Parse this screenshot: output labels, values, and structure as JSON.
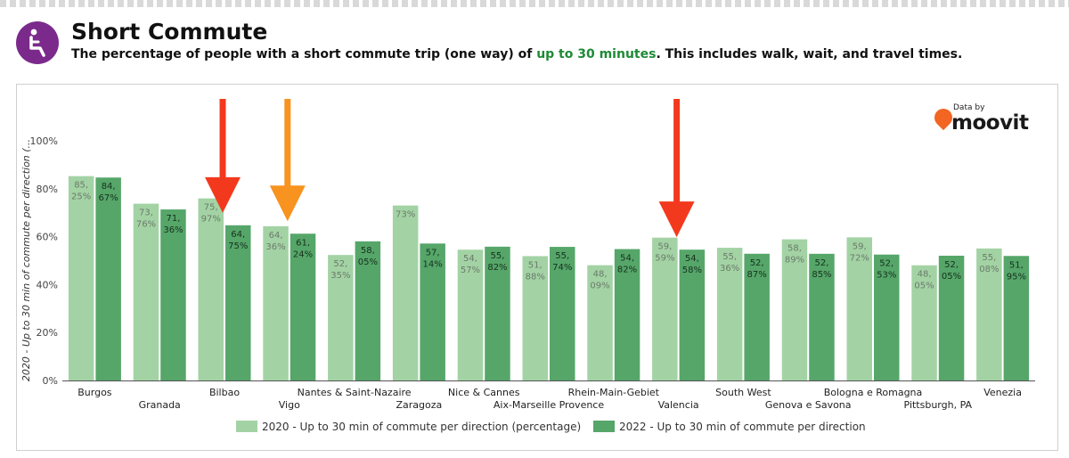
{
  "header": {
    "title": "Short Commute",
    "subtitle_part1": "The percentage of people with a short commute trip (one way) of ",
    "subtitle_highlight": "up to 30 minutes",
    "subtitle_part2": ". This includes walk, wait, and travel times.",
    "icon": "seated-person-icon",
    "icon_color": "#7b2a8c",
    "highlight_color": "#1e8a36"
  },
  "brand": {
    "small": "Data by",
    "name": "moovit",
    "icon": "map-pin-smile-icon",
    "color": "#f26522"
  },
  "chart_data": {
    "type": "bar",
    "ylabel": "2020 - Up to 30 min of commute per direction (...",
    "ylim": [
      0,
      100
    ],
    "yticks": [
      "0%",
      "20%",
      "40%",
      "60%",
      "80%",
      "100%"
    ],
    "grid": false,
    "legend_position": "bottom",
    "categories": [
      "Burgos",
      "Granada",
      "Bilbao",
      "Vigo",
      "Nantes & Saint-Nazaire",
      "Zaragoza",
      "Nice & Cannes",
      "Aix-Marseille Provence",
      "Rhein-Main-Gebiet",
      "Valencia",
      "South West",
      "Genova e Savona",
      "Bologna e Romagna",
      "Pittsburgh, PA",
      "Venezia"
    ],
    "series": [
      {
        "name": "2020 - Up to 30 min of commute per direction (percentage)",
        "color": "#a3d3a4",
        "values": [
          85.25,
          73.76,
          75.97,
          64.36,
          52.35,
          73,
          54.57,
          51.88,
          48.09,
          59.59,
          55.36,
          58.89,
          59.72,
          48.05,
          55.08
        ],
        "labels": [
          [
            "85,",
            "25%"
          ],
          [
            "73,",
            "76%"
          ],
          [
            "75,",
            "97%"
          ],
          [
            "64,",
            "36%"
          ],
          [
            "52,",
            "35%"
          ],
          [
            "73%"
          ],
          [
            "54,",
            "57%"
          ],
          [
            "51,",
            "88%"
          ],
          [
            "48,",
            "09%"
          ],
          [
            "59,",
            "59%"
          ],
          [
            "55,",
            "36%"
          ],
          [
            "58,",
            "89%"
          ],
          [
            "59,",
            "72%"
          ],
          [
            "48,",
            "05%"
          ],
          [
            "55,",
            "08%"
          ]
        ]
      },
      {
        "name": "2022 - Up to 30 min of commute per direction",
        "color": "#56a66a",
        "values": [
          84.67,
          71.36,
          64.75,
          61.24,
          58.05,
          57.14,
          55.82,
          55.74,
          54.82,
          54.58,
          52.87,
          52.85,
          52.53,
          52.05,
          51.95
        ],
        "labels": [
          [
            "84,",
            "67%"
          ],
          [
            "71,",
            "36%"
          ],
          [
            "64,",
            "75%"
          ],
          [
            "61,",
            "24%"
          ],
          [
            "58,",
            "05%"
          ],
          [
            "57,",
            "14%"
          ],
          [
            "55,",
            "82%"
          ],
          [
            "55,",
            "74%"
          ],
          [
            "54,",
            "82%"
          ],
          [
            "54,",
            "58%"
          ],
          [
            "52,",
            "87%"
          ],
          [
            "52,",
            "85%"
          ],
          [
            "52,",
            "53%"
          ],
          [
            "52,",
            "05%"
          ],
          [
            "51,",
            "95%"
          ]
        ]
      }
    ],
    "annotations": [
      {
        "type": "arrow",
        "category": "Bilbao",
        "color": "#f3391d"
      },
      {
        "type": "arrow",
        "category": "Vigo",
        "color": "#f7931e"
      },
      {
        "type": "arrow",
        "category": "Valencia",
        "color": "#f3391d"
      }
    ]
  }
}
